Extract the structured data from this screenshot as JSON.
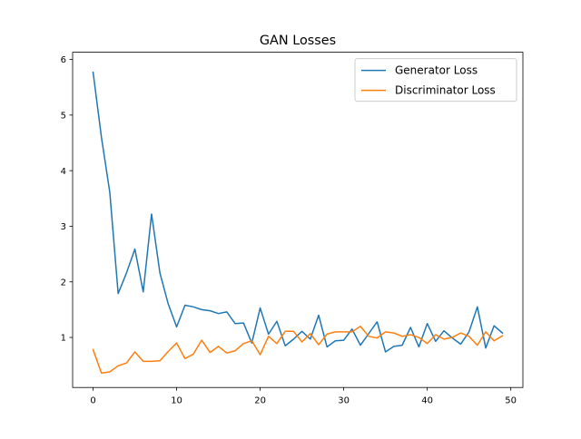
{
  "chart_data": {
    "type": "line",
    "title": "GAN Losses",
    "xlabel": "",
    "ylabel": "",
    "xlim": [
      -2.45,
      51.45
    ],
    "ylim": [
      0.1,
      6.13
    ],
    "xticks": [
      0,
      10,
      20,
      30,
      40,
      50
    ],
    "yticks": [
      1,
      2,
      3,
      4,
      5,
      6
    ],
    "grid": false,
    "legend": "top-right",
    "x": [
      0,
      1,
      2,
      3,
      4,
      5,
      6,
      7,
      8,
      9,
      10,
      11,
      12,
      13,
      14,
      15,
      16,
      17,
      18,
      19,
      20,
      21,
      22,
      23,
      24,
      25,
      26,
      27,
      28,
      29,
      30,
      31,
      32,
      33,
      34,
      35,
      36,
      37,
      38,
      39,
      40,
      41,
      42,
      43,
      44,
      45,
      46,
      47,
      48,
      49
    ],
    "series": [
      {
        "name": "Generator Loss",
        "color": "#1f77b4",
        "values": [
          5.77,
          4.6,
          3.61,
          1.79,
          2.16,
          2.59,
          1.82,
          3.22,
          2.16,
          1.6,
          1.19,
          1.58,
          1.55,
          1.5,
          1.48,
          1.43,
          1.46,
          1.25,
          1.26,
          0.9,
          1.53,
          1.06,
          1.29,
          0.85,
          0.97,
          1.11,
          0.97,
          1.4,
          0.83,
          0.94,
          0.95,
          1.15,
          0.86,
          1.07,
          1.28,
          0.74,
          0.84,
          0.86,
          1.18,
          0.83,
          1.25,
          0.93,
          1.12,
          0.99,
          0.88,
          1.1,
          1.55,
          0.81,
          1.21,
          1.08
        ]
      },
      {
        "name": "Discriminator Loss",
        "color": "#ff7f0e",
        "values": [
          0.78,
          0.36,
          0.38,
          0.49,
          0.54,
          0.74,
          0.57,
          0.57,
          0.58,
          0.75,
          0.9,
          0.62,
          0.7,
          0.95,
          0.73,
          0.84,
          0.72,
          0.76,
          0.89,
          0.94,
          0.69,
          1.02,
          0.89,
          1.11,
          1.11,
          0.92,
          1.07,
          0.87,
          1.06,
          1.1,
          1.1,
          1.1,
          1.2,
          1.02,
          0.99,
          1.1,
          1.08,
          1.02,
          1.05,
          1.0,
          0.89,
          1.05,
          0.97,
          1.0,
          1.08,
          1.02,
          0.86,
          1.1,
          0.94,
          1.03
        ]
      }
    ]
  }
}
